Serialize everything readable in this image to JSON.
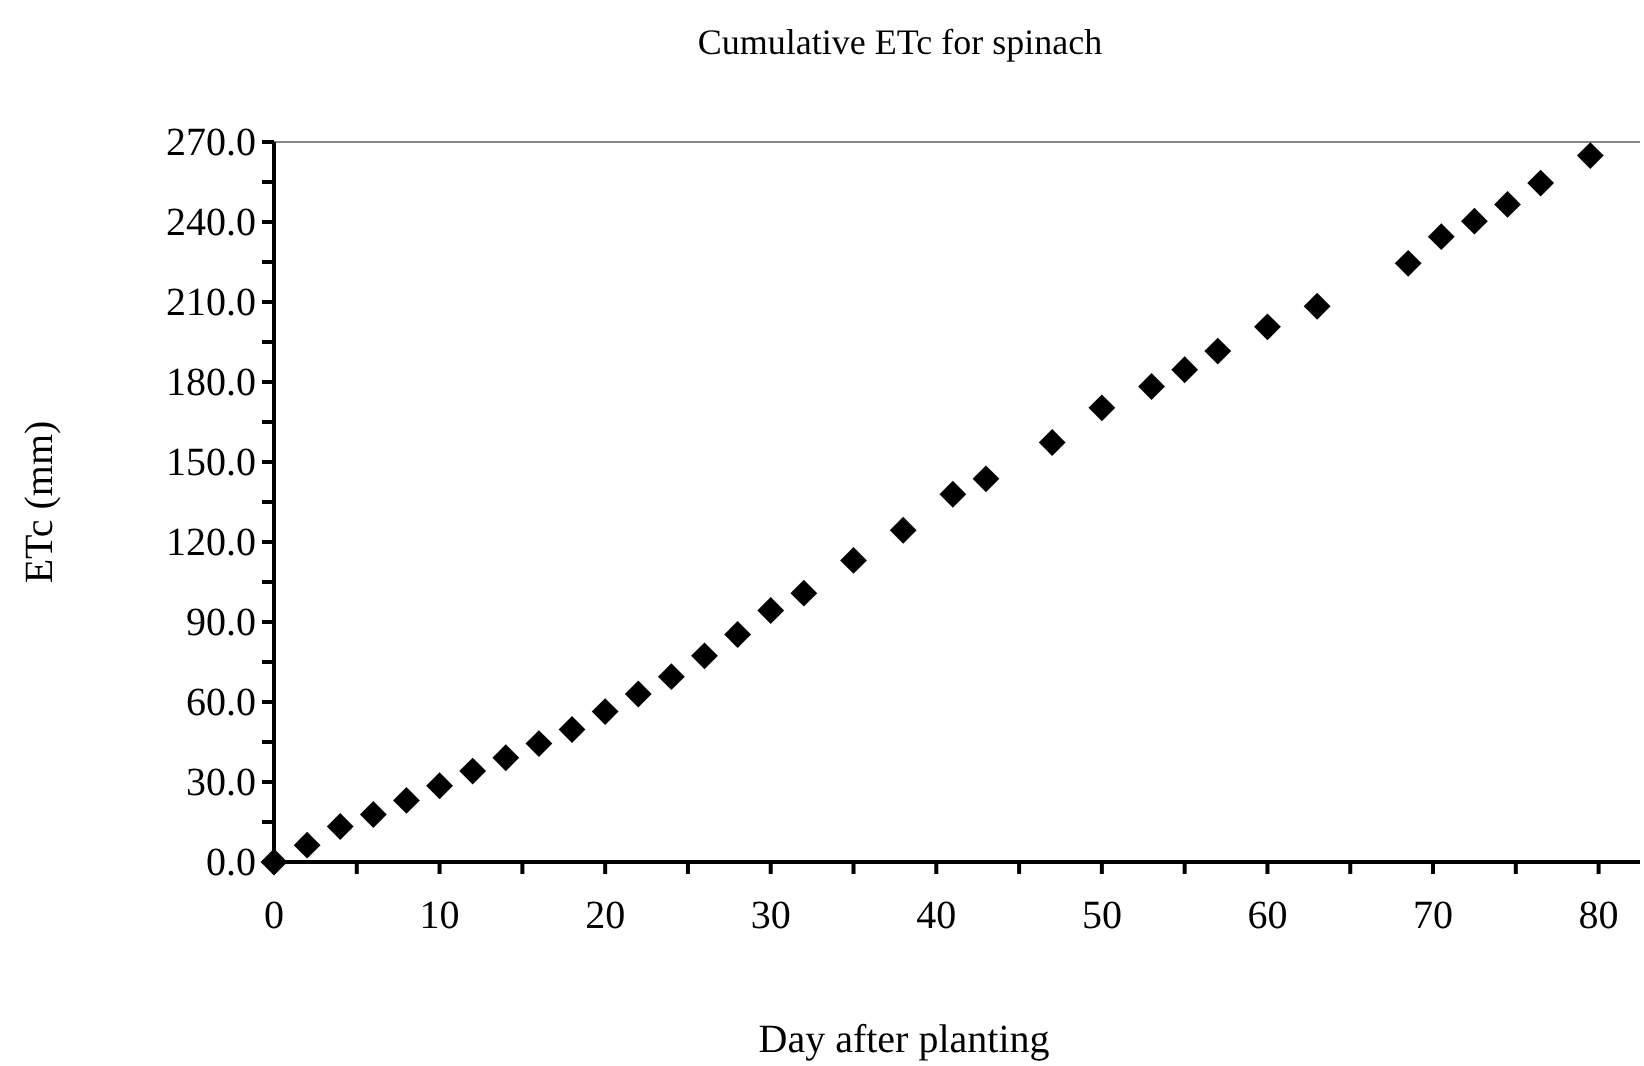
{
  "chart_data": {
    "type": "scatter",
    "title": "Cumulative ETc for spinach",
    "xlabel": "Day after planting",
    "ylabel": "ETc (mm)",
    "x": [
      0,
      2,
      4,
      6,
      8,
      10,
      12,
      14,
      16,
      18,
      20,
      22,
      24,
      26,
      28,
      30,
      32,
      35,
      38,
      41,
      43,
      47,
      50,
      53,
      55,
      57,
      60,
      63,
      68.5,
      70.5,
      72.5,
      74.5,
      76.5,
      79.5
    ],
    "values": [
      0,
      6.3,
      13.3,
      17.8,
      23.1,
      28.6,
      34.1,
      39.1,
      44.4,
      49.7,
      56.4,
      63,
      69.5,
      77.3,
      85.3,
      94.3,
      100.8,
      113.1,
      124.4,
      137.9,
      143.7,
      157.3,
      170.3,
      178.3,
      184.6,
      191.6,
      200.7,
      208.4,
      224.5,
      234.5,
      240.3,
      246.6,
      254.6,
      264.9
    ],
    "color": "#000000",
    "marker": "diamond",
    "xlim": [
      0,
      82.5
    ],
    "ylim": [
      0,
      270
    ],
    "xticks": [
      0,
      {
        "value": 5,
        "label": null
      },
      10,
      {
        "value": 15,
        "label": null
      },
      20,
      {
        "value": 25,
        "label": null
      },
      30,
      {
        "value": 35,
        "label": null
      },
      40,
      {
        "value": 45,
        "label": null
      },
      50,
      {
        "value": 55,
        "label": null
      },
      60,
      {
        "value": 65,
        "label": null
      },
      70,
      {
        "value": 75,
        "label": null
      },
      80
    ],
    "yticks": [
      {
        "value": 0,
        "label": "0.0"
      },
      {
        "value": 15,
        "label": null
      },
      {
        "value": 30,
        "label": "30.0"
      },
      {
        "value": 45,
        "label": null
      },
      {
        "value": 60,
        "label": "60.0"
      },
      {
        "value": 75,
        "label": null
      },
      {
        "value": 90,
        "label": "90.0"
      },
      {
        "value": 105,
        "label": null
      },
      {
        "value": 120,
        "label": "120.0"
      },
      {
        "value": 135,
        "label": null
      },
      {
        "value": 150,
        "label": "150.0"
      },
      {
        "value": 165,
        "label": null
      },
      {
        "value": 180,
        "label": "180.0"
      },
      {
        "value": 195,
        "label": null
      },
      {
        "value": 210,
        "label": "210.0"
      },
      {
        "value": 225,
        "label": null
      },
      {
        "value": 240,
        "label": "240.0"
      },
      {
        "value": 255,
        "label": null
      },
      {
        "value": 270,
        "label": "270.0"
      }
    ],
    "grid": false
  }
}
